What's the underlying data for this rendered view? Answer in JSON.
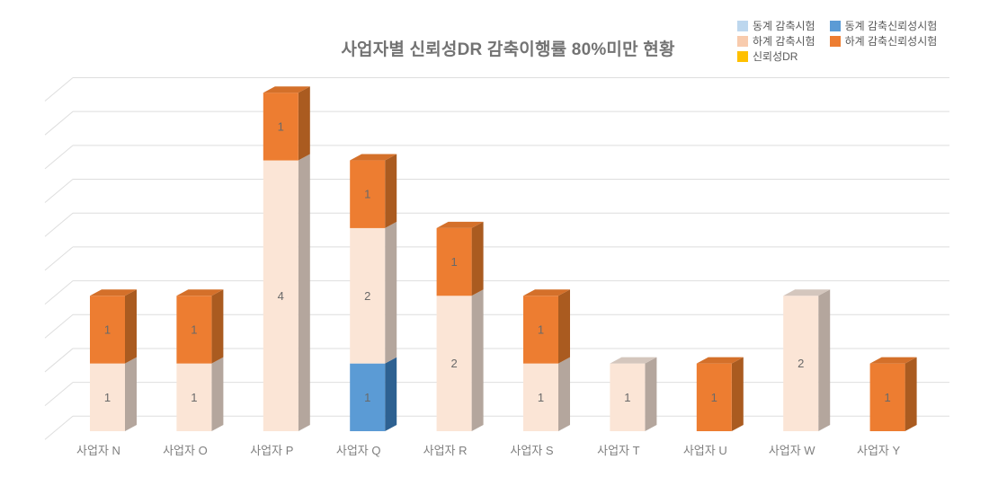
{
  "title": "사업자별 신뢰성DR 감축이행률 80%미만 현황",
  "legend": {
    "items": [
      {
        "label": "동계 감축시험",
        "color": "#BDD7EE"
      },
      {
        "label": "동계 감축신뢰성시험",
        "color": "#5B9BD5"
      },
      {
        "label": "하계 감축시험",
        "color": "#F8CBAD"
      },
      {
        "label": "하계 감축신뢰성시험",
        "color": "#ED7D31"
      },
      {
        "label": "신뢰성DR",
        "color": "#FFC000"
      }
    ]
  },
  "chart_data": {
    "type": "bar",
    "subtype": "3d-stacked-column",
    "title": "사업자별 신뢰성DR 감축이행률 80%미만 현황",
    "xlabel": "",
    "ylabel": "",
    "ylim": [
      0,
      5
    ],
    "gridline_step": 0.5,
    "grid": true,
    "legend_position": "top-right",
    "data_labels": true,
    "categories": [
      "사업자 N",
      "사업자 O",
      "사업자 P",
      "사업자 Q",
      "사업자 R",
      "사업자 S",
      "사업자 T",
      "사업자 U",
      "사업자 W",
      "사업자 Y"
    ],
    "series": [
      {
        "name": "동계 감축시험",
        "color": "#BDD7EE",
        "front": "#BDD7EE",
        "side": "#8FA8C2",
        "top": "#A8C4DC",
        "values": [
          0,
          0,
          0,
          0,
          0,
          0,
          0,
          0,
          0,
          0
        ]
      },
      {
        "name": "동계 감축신뢰성시험",
        "color": "#5B9BD5",
        "front": "#5B9BD5",
        "side": "#2E6191",
        "top": "#4D8AC0",
        "values": [
          0,
          0,
          0,
          1,
          0,
          0,
          0,
          0,
          0,
          0
        ]
      },
      {
        "name": "하계 감축시험",
        "color": "#F8CBAD",
        "front": "#FBE5D6",
        "side": "#B4A69D",
        "top": "#D4C6BD",
        "values": [
          1,
          1,
          4,
          2,
          2,
          1,
          1,
          0,
          2,
          0
        ]
      },
      {
        "name": "하계 감축신뢰성시험",
        "color": "#ED7D31",
        "front": "#ED7D31",
        "side": "#AA5B20",
        "top": "#D4702A",
        "values": [
          1,
          1,
          1,
          1,
          1,
          1,
          0,
          1,
          0,
          1
        ]
      },
      {
        "name": "신뢰성DR",
        "color": "#FFC000",
        "front": "#FFC000",
        "side": "#B38600",
        "top": "#E0A800",
        "values": [
          0,
          0,
          0,
          0,
          0,
          0,
          0,
          0,
          0,
          0
        ]
      }
    ],
    "stack_totals": [
      2,
      2,
      5,
      4,
      3,
      2,
      1,
      1,
      2,
      1
    ]
  }
}
